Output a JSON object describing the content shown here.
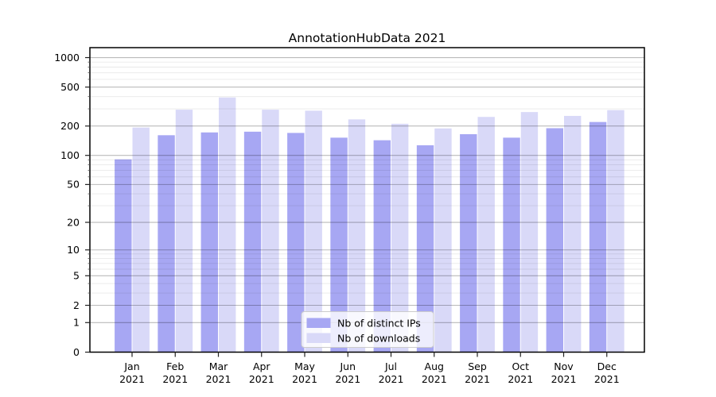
{
  "chart_data": {
    "type": "bar",
    "title": "AnnotationHubData 2021",
    "categories": [
      "Jan 2021",
      "Feb 2021",
      "Mar 2021",
      "Apr 2021",
      "May 2021",
      "Jun 2021",
      "Jul 2021",
      "Aug 2021",
      "Sep 2021",
      "Oct 2021",
      "Nov 2021",
      "Dec 2021"
    ],
    "series": [
      {
        "name": "Nb of distinct IPs",
        "color": "#a7a7f3",
        "values": [
          91,
          161,
          172,
          175,
          170,
          152,
          143,
          127,
          165,
          152,
          190,
          220
        ]
      },
      {
        "name": "Nb of downloads",
        "color": "#d9d9f8",
        "values": [
          193,
          294,
          392,
          294,
          287,
          234,
          211,
          189,
          248,
          278,
          254,
          291
        ]
      }
    ],
    "y_scale": "log1p",
    "ylim": [
      0,
      1263
    ],
    "y_tick_values": [
      0,
      1,
      2,
      5,
      10,
      20,
      50,
      100,
      200,
      500,
      1000
    ],
    "y_tick_labels": [
      "0",
      "1",
      "2",
      "5",
      "10",
      "20",
      "50",
      "100",
      "200",
      "500",
      "1000"
    ],
    "y_minor_tick_values": [
      3,
      4,
      6,
      7,
      8,
      9,
      30,
      40,
      60,
      70,
      80,
      90,
      300,
      400,
      600,
      700,
      800,
      900
    ],
    "grid": true,
    "legend": {
      "position": "lower center",
      "entries": [
        "Nb of distinct IPs",
        "Nb of downloads"
      ]
    },
    "colors": {
      "background": "#ffffff",
      "spine": "#000000",
      "major_grid": "#bababa",
      "minor_grid": "#e9e9e9",
      "text": "#000000",
      "legend_border": "#cccccc"
    }
  }
}
